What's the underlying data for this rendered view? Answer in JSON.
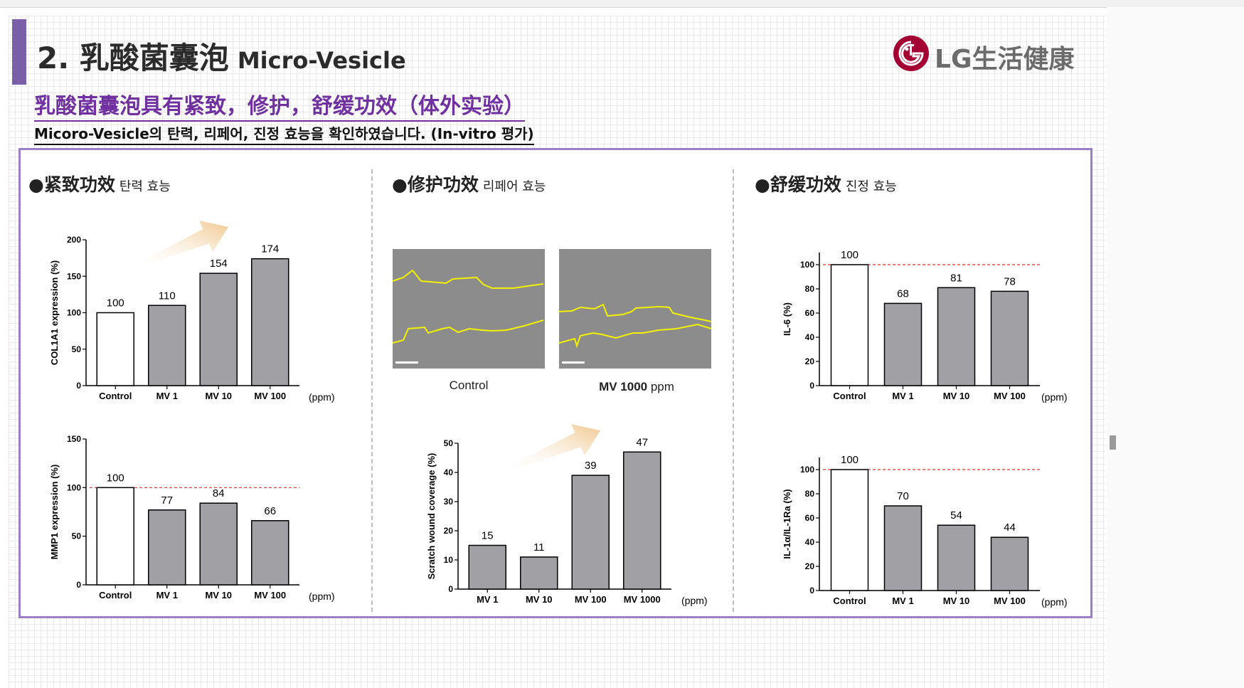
{
  "header": {
    "title_num": "2. 乳酸菌囊泡",
    "title_en": "Micro-Vesicle",
    "logo_text": "LG生活健康",
    "subtitle_zh": "乳酸菌囊泡具有紧致，修护，舒缓功效（体外实验）",
    "subtitle_ko": "Micoro-Vesicle의 탄력, 리페어, 진정 효능을 확인하였습니다. (In-vitro 평가)"
  },
  "sections": [
    {
      "zh": "●紧致功效",
      "ko": "탄력 효능"
    },
    {
      "zh": "●修护功效",
      "ko": "리페어 효능"
    },
    {
      "zh": "●舒缓功效",
      "ko": "진정 효능"
    }
  ],
  "photos": {
    "control_label": "Control",
    "mv_label_bold": "MV 1000",
    "mv_label_unit": "ppm"
  },
  "colors": {
    "accent": "#7b5ea8",
    "subtitle": "#7030a0",
    "bar_gray": "#a0a0a5",
    "ref_line": "#e03030",
    "wound_line": "#f2f200",
    "arrow": "#f0c890"
  },
  "chart_data": [
    {
      "id": "col1a1",
      "type": "bar",
      "categories": [
        "Control",
        "MV 1",
        "MV 10",
        "MV 100"
      ],
      "values": [
        100,
        110,
        154,
        174
      ],
      "data_labels": [
        "100",
        "110",
        "154",
        "174"
      ],
      "ylabel": "COL1A1 expression (%)",
      "ylim": [
        0,
        200
      ],
      "yticks": [
        0,
        50,
        100,
        150,
        200
      ],
      "unit": "(ppm)",
      "hollow_first": true,
      "ref_line": null,
      "arrow": true
    },
    {
      "id": "mmp1",
      "type": "bar",
      "categories": [
        "Control",
        "MV 1",
        "MV 10",
        "MV 100"
      ],
      "values": [
        100,
        77,
        84,
        66
      ],
      "data_labels": [
        "100",
        "77",
        "84",
        "66"
      ],
      "ylabel": "MMP1 expression (%)",
      "ylim": [
        0,
        150
      ],
      "yticks": [
        0,
        50,
        100,
        150
      ],
      "unit": "(ppm)",
      "hollow_first": true,
      "ref_line": 100,
      "arrow": false
    },
    {
      "id": "wound",
      "type": "bar",
      "categories": [
        "MV 1",
        "MV 10",
        "MV 100",
        "MV 1000"
      ],
      "values": [
        15,
        11,
        39,
        47
      ],
      "data_labels": [
        "15",
        "11",
        "39",
        "47"
      ],
      "ylabel": "Scratch wound coverage (%)",
      "ylim": [
        0,
        50
      ],
      "yticks": [
        0,
        10,
        20,
        30,
        40,
        50
      ],
      "unit": "(ppm)",
      "hollow_first": false,
      "ref_line": null,
      "arrow": true
    },
    {
      "id": "il6",
      "type": "bar",
      "categories": [
        "Control",
        "MV 1",
        "MV 10",
        "MV 100"
      ],
      "values": [
        100,
        68,
        81,
        78
      ],
      "data_labels": [
        "100",
        "68",
        "81",
        "78"
      ],
      "ylabel": "IL-6 (%)",
      "ylim": [
        0,
        110
      ],
      "yticks": [
        0,
        20,
        40,
        60,
        80,
        100
      ],
      "unit": "(ppm)",
      "hollow_first": true,
      "ref_line": 100,
      "arrow": false
    },
    {
      "id": "il1a",
      "type": "bar",
      "categories": [
        "Control",
        "MV 1",
        "MV 10",
        "MV 100"
      ],
      "values": [
        100,
        70,
        54,
        44
      ],
      "data_labels": [
        "100",
        "70",
        "54",
        "44"
      ],
      "ylabel": "IL-1α/IL-1Ra (%)",
      "ylim": [
        0,
        110
      ],
      "yticks": [
        0,
        20,
        40,
        60,
        80,
        100
      ],
      "unit": "(ppm)",
      "hollow_first": true,
      "ref_line": 100,
      "arrow": false
    }
  ]
}
